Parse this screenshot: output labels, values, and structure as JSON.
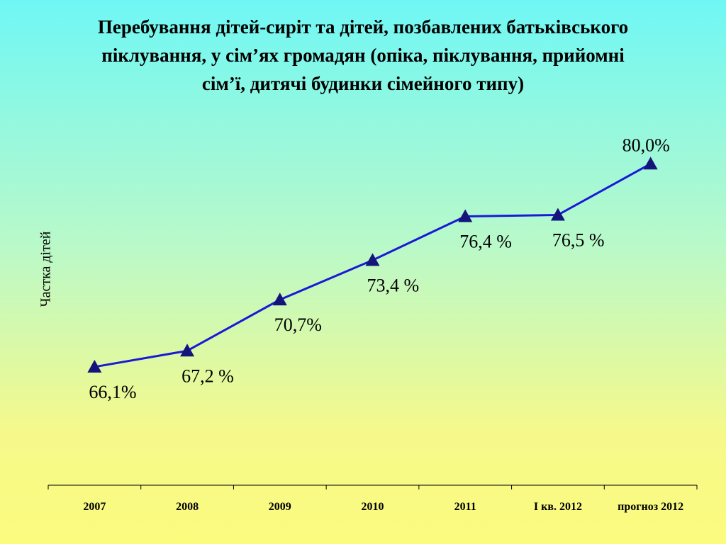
{
  "chart_data": {
    "type": "line",
    "title": "Перебування дітей-сиріт та дітей, позбавлених батьківського піклування, у сім’ях громадян (опіка, піклування, прийомні сім’ї, дитячі будинки сімейного типу)",
    "y_label": "Частка дітей",
    "categories": [
      "2007",
      "2008",
      "2009",
      "2010",
      "2011",
      "I кв. 2012",
      "прогноз 2012"
    ],
    "values": [
      66.1,
      67.2,
      70.7,
      73.4,
      76.4,
      76.5,
      80.0
    ],
    "value_labels": [
      "66,1%",
      "67,2 %",
      "70,7%",
      "73,4 %",
      "76,4 %",
      "76,5 %",
      "80,0%"
    ],
    "color": "#1a1ad6",
    "marker_color": "#14147a",
    "ylim": [
      58,
      82
    ]
  }
}
